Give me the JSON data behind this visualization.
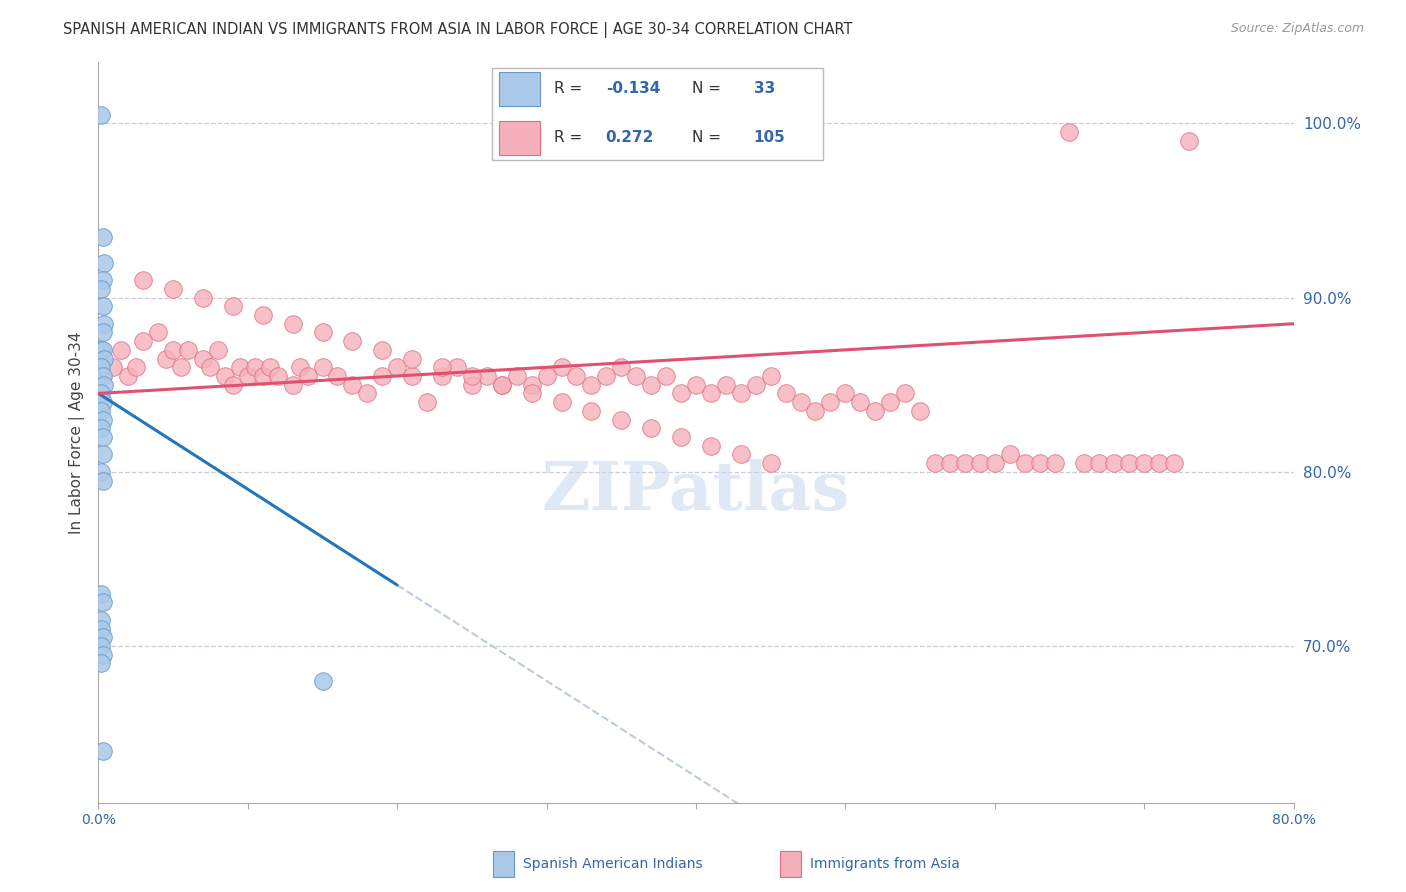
{
  "title": "SPANISH AMERICAN INDIAN VS IMMIGRANTS FROM ASIA IN LABOR FORCE | AGE 30-34 CORRELATION CHART",
  "source_text": "Source: ZipAtlas.com",
  "ylabel": "In Labor Force | Age 30-34",
  "right_yticks": [
    100.0,
    90.0,
    80.0,
    70.0
  ],
  "right_ytick_labels": [
    "100.0%",
    "90.0%",
    "80.0%",
    "70.0%"
  ],
  "xmin": 0.0,
  "xmax": 80.0,
  "ymin": 61.0,
  "ymax": 103.5,
  "blue_color_face": "#aac8e8",
  "blue_color_edge": "#6699cc",
  "pink_color_face": "#f5b0bb",
  "pink_color_edge": "#e07080",
  "blue_line_color": "#2277bb",
  "pink_line_color": "#e05070",
  "dash_color": "#bbccdd",
  "watermark": "ZIPatlas",
  "legend_r1": "-0.134",
  "legend_n1": "33",
  "legend_r2": "0.272",
  "legend_n2": "105",
  "legend_text_color": "#334455",
  "legend_val_color": "#3366aa",
  "bottom_label_color": "#3366aa",
  "title_color": "#333333",
  "source_color": "#999999",
  "xtick_color": "#3366aa",
  "ytick_color": "#3366aa",
  "grid_color": "#ccccdd",
  "blue_scatter_x": [
    0.2,
    0.3,
    0.4,
    0.3,
    0.2,
    0.3,
    0.4,
    0.3,
    0.2,
    0.3,
    0.4,
    0.2,
    0.3,
    0.4,
    0.2,
    0.3,
    0.2,
    0.3,
    0.2,
    0.3,
    0.3,
    0.2,
    0.3,
    0.2,
    0.3,
    0.2,
    15.0,
    0.2,
    0.3,
    0.2,
    0.3,
    0.2,
    0.3
  ],
  "blue_scatter_y": [
    100.5,
    93.5,
    92.0,
    91.0,
    90.5,
    89.5,
    88.5,
    88.0,
    87.0,
    87.0,
    86.5,
    86.0,
    85.5,
    85.0,
    84.5,
    84.0,
    83.5,
    83.0,
    82.5,
    82.0,
    81.0,
    80.0,
    79.5,
    73.0,
    72.5,
    71.5,
    68.0,
    71.0,
    70.5,
    70.0,
    69.5,
    69.0,
    64.0
  ],
  "pink_scatter_x": [
    1.0,
    1.5,
    2.0,
    2.5,
    3.0,
    4.0,
    4.5,
    5.0,
    5.5,
    6.0,
    7.0,
    7.5,
    8.0,
    8.5,
    9.0,
    9.5,
    10.0,
    10.5,
    11.0,
    11.5,
    12.0,
    13.0,
    13.5,
    14.0,
    15.0,
    16.0,
    17.0,
    18.0,
    19.0,
    20.0,
    21.0,
    22.0,
    23.0,
    24.0,
    25.0,
    26.0,
    27.0,
    28.0,
    29.0,
    30.0,
    31.0,
    32.0,
    33.0,
    34.0,
    35.0,
    36.0,
    37.0,
    38.0,
    39.0,
    40.0,
    41.0,
    42.0,
    43.0,
    44.0,
    45.0,
    46.0,
    47.0,
    48.0,
    49.0,
    50.0,
    51.0,
    52.0,
    53.0,
    54.0,
    55.0,
    56.0,
    57.0,
    58.0,
    59.0,
    60.0,
    61.0,
    62.0,
    63.0,
    64.0,
    65.0,
    66.0,
    67.0,
    68.0,
    69.0,
    70.0,
    71.0,
    72.0,
    73.0,
    3.0,
    5.0,
    7.0,
    9.0,
    11.0,
    13.0,
    15.0,
    17.0,
    19.0,
    21.0,
    23.0,
    25.0,
    27.0,
    29.0,
    31.0,
    33.0,
    35.0,
    37.0,
    39.0,
    41.0,
    43.0,
    45.0
  ],
  "pink_scatter_y": [
    86.0,
    87.0,
    85.5,
    86.0,
    87.5,
    88.0,
    86.5,
    87.0,
    86.0,
    87.0,
    86.5,
    86.0,
    87.0,
    85.5,
    85.0,
    86.0,
    85.5,
    86.0,
    85.5,
    86.0,
    85.5,
    85.0,
    86.0,
    85.5,
    86.0,
    85.5,
    85.0,
    84.5,
    85.5,
    86.0,
    85.5,
    84.0,
    85.5,
    86.0,
    85.0,
    85.5,
    85.0,
    85.5,
    85.0,
    85.5,
    86.0,
    85.5,
    85.0,
    85.5,
    86.0,
    85.5,
    85.0,
    85.5,
    84.5,
    85.0,
    84.5,
    85.0,
    84.5,
    85.0,
    85.5,
    84.5,
    84.0,
    83.5,
    84.0,
    84.5,
    84.0,
    83.5,
    84.0,
    84.5,
    83.5,
    80.5,
    80.5,
    80.5,
    80.5,
    80.5,
    81.0,
    80.5,
    80.5,
    80.5,
    99.5,
    80.5,
    80.5,
    80.5,
    80.5,
    80.5,
    80.5,
    80.5,
    99.0,
    91.0,
    90.5,
    90.0,
    89.5,
    89.0,
    88.5,
    88.0,
    87.5,
    87.0,
    86.5,
    86.0,
    85.5,
    85.0,
    84.5,
    84.0,
    83.5,
    83.0,
    82.5,
    82.0,
    81.5,
    81.0,
    80.5
  ]
}
